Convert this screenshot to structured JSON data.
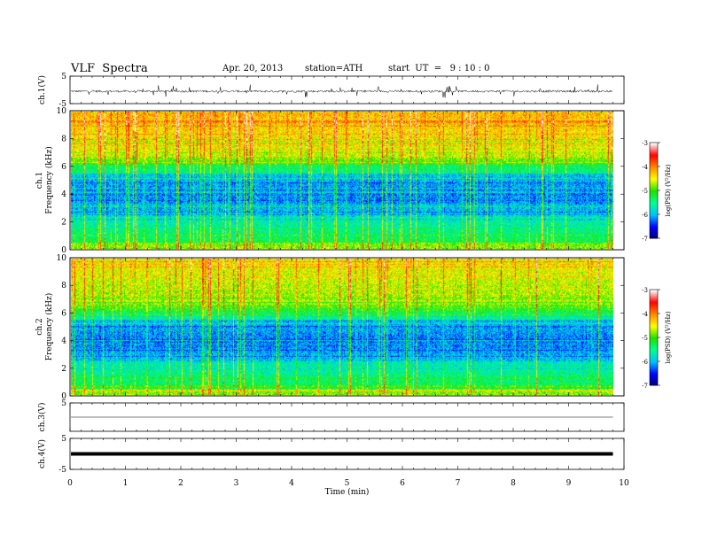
{
  "header": {
    "title": "VLF  Spectra",
    "date": "Apr. 20, 2013",
    "station": "station=ATH",
    "start": "start  UT  =   9 : 10 : 0"
  },
  "colorscale": {
    "colors": [
      "#000070",
      "#0000ff",
      "#00c0ff",
      "#00ff90",
      "#20e000",
      "#ffff00",
      "#ff8800",
      "#ff0000",
      "#ffffff"
    ],
    "label": "log(PSD) (V²/Hz)",
    "ticks": [
      "-3",
      "-4",
      "-5",
      "-6",
      "-7"
    ]
  },
  "chart_data": [
    {
      "type": "line",
      "name": "ch.1",
      "ylabel": "ch.1(V)",
      "ylim": [
        -5,
        5
      ],
      "yticks": [
        "5",
        "-5"
      ],
      "xlim": [
        0,
        10
      ],
      "baseline": -0.5,
      "noise_amplitude": 0.8,
      "end_time": 9.8
    },
    {
      "type": "heatmap",
      "name": "ch.1",
      "ylabel_1": "ch.1",
      "ylabel_2": "Frequency  (kHz)",
      "ylim": [
        0,
        10
      ],
      "yticks": [
        "0",
        "2",
        "4",
        "6",
        "8",
        "10"
      ],
      "xlim": [
        0,
        10
      ],
      "end_time": 9.8,
      "clim": [
        -7,
        -3
      ]
    },
    {
      "type": "heatmap",
      "name": "ch.2",
      "ylabel_1": "ch.2",
      "ylabel_2": "Frequency  (kHz)",
      "ylim": [
        0,
        10
      ],
      "yticks": [
        "0",
        "2",
        "4",
        "6",
        "8",
        "10"
      ],
      "xlim": [
        0,
        10
      ],
      "end_time": 9.8,
      "clim": [
        -7,
        -3
      ]
    },
    {
      "type": "line",
      "name": "ch.3",
      "ylabel": "ch.3(V)",
      "ylim": [
        -5,
        5
      ],
      "yticks": [
        "5"
      ],
      "xlim": [
        0,
        10
      ],
      "baseline": 0,
      "end_time": 9.8
    },
    {
      "type": "line",
      "name": "ch.4",
      "ylabel": "ch.4(V)",
      "ylim": [
        -5,
        5
      ],
      "yticks": [
        "5",
        "-5"
      ],
      "xlim": [
        0,
        10
      ],
      "baseline": 0,
      "end_time": 9.8
    }
  ],
  "xaxis": {
    "label": "Time  (min)",
    "ticks": [
      "0",
      "1",
      "2",
      "3",
      "4",
      "5",
      "6",
      "7",
      "8",
      "9",
      "10"
    ]
  }
}
